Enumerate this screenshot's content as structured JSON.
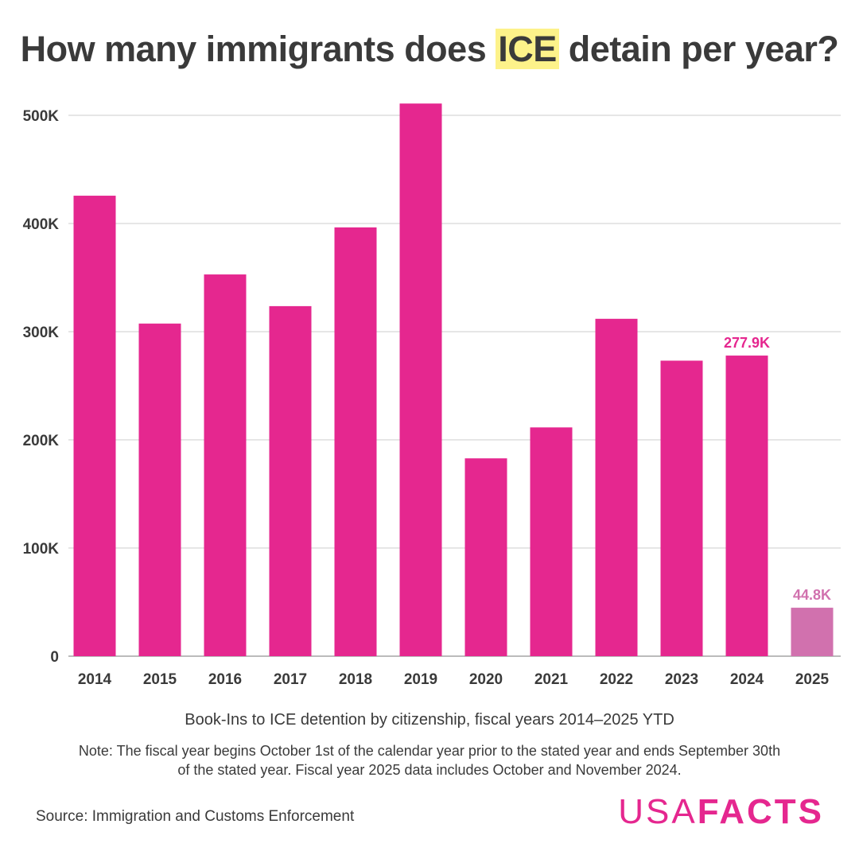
{
  "title": {
    "pre": "How many immigrants does ",
    "highlight": "ICE",
    "post": " detain per year?"
  },
  "subtitle": "Book-Ins to ICE detention by citizenship, fiscal years 2014–2025 YTD",
  "note": "Note: The fiscal year begins October 1st of the calendar year prior to the stated year and ends September 30th of the stated year. Fiscal year 2025 data includes October and November 2024.",
  "source": "Source: Immigration and Customs Enforcement",
  "logo": {
    "thin": "USA",
    "bold": "FACTS"
  },
  "colors": {
    "bar": "#e5278f",
    "bar_partial": "#d171ae",
    "grid": "#dddddd",
    "text": "#3a3a3a"
  },
  "chart_data": {
    "type": "bar",
    "categories": [
      "2014",
      "2015",
      "2016",
      "2017",
      "2018",
      "2019",
      "2020",
      "2021",
      "2022",
      "2023",
      "2024",
      "2025"
    ],
    "values": [
      425700,
      307500,
      352900,
      323600,
      396400,
      510900,
      182900,
      211500,
      311900,
      273200,
      277900,
      44800
    ],
    "partial": [
      false,
      false,
      false,
      false,
      false,
      false,
      false,
      false,
      false,
      false,
      false,
      true
    ],
    "data_labels": [
      {
        "category": "2024",
        "text": "277.9K"
      },
      {
        "category": "2025",
        "text": "44.8K"
      }
    ],
    "y_ticks": [
      0,
      100000,
      200000,
      300000,
      400000,
      500000
    ],
    "y_tick_labels": [
      "0",
      "100K",
      "200K",
      "300K",
      "400K",
      "500K"
    ],
    "ylim": [
      0,
      520000
    ],
    "grid": true,
    "title": "How many immigrants does ICE detain per year?",
    "xlabel": "",
    "ylabel": ""
  }
}
